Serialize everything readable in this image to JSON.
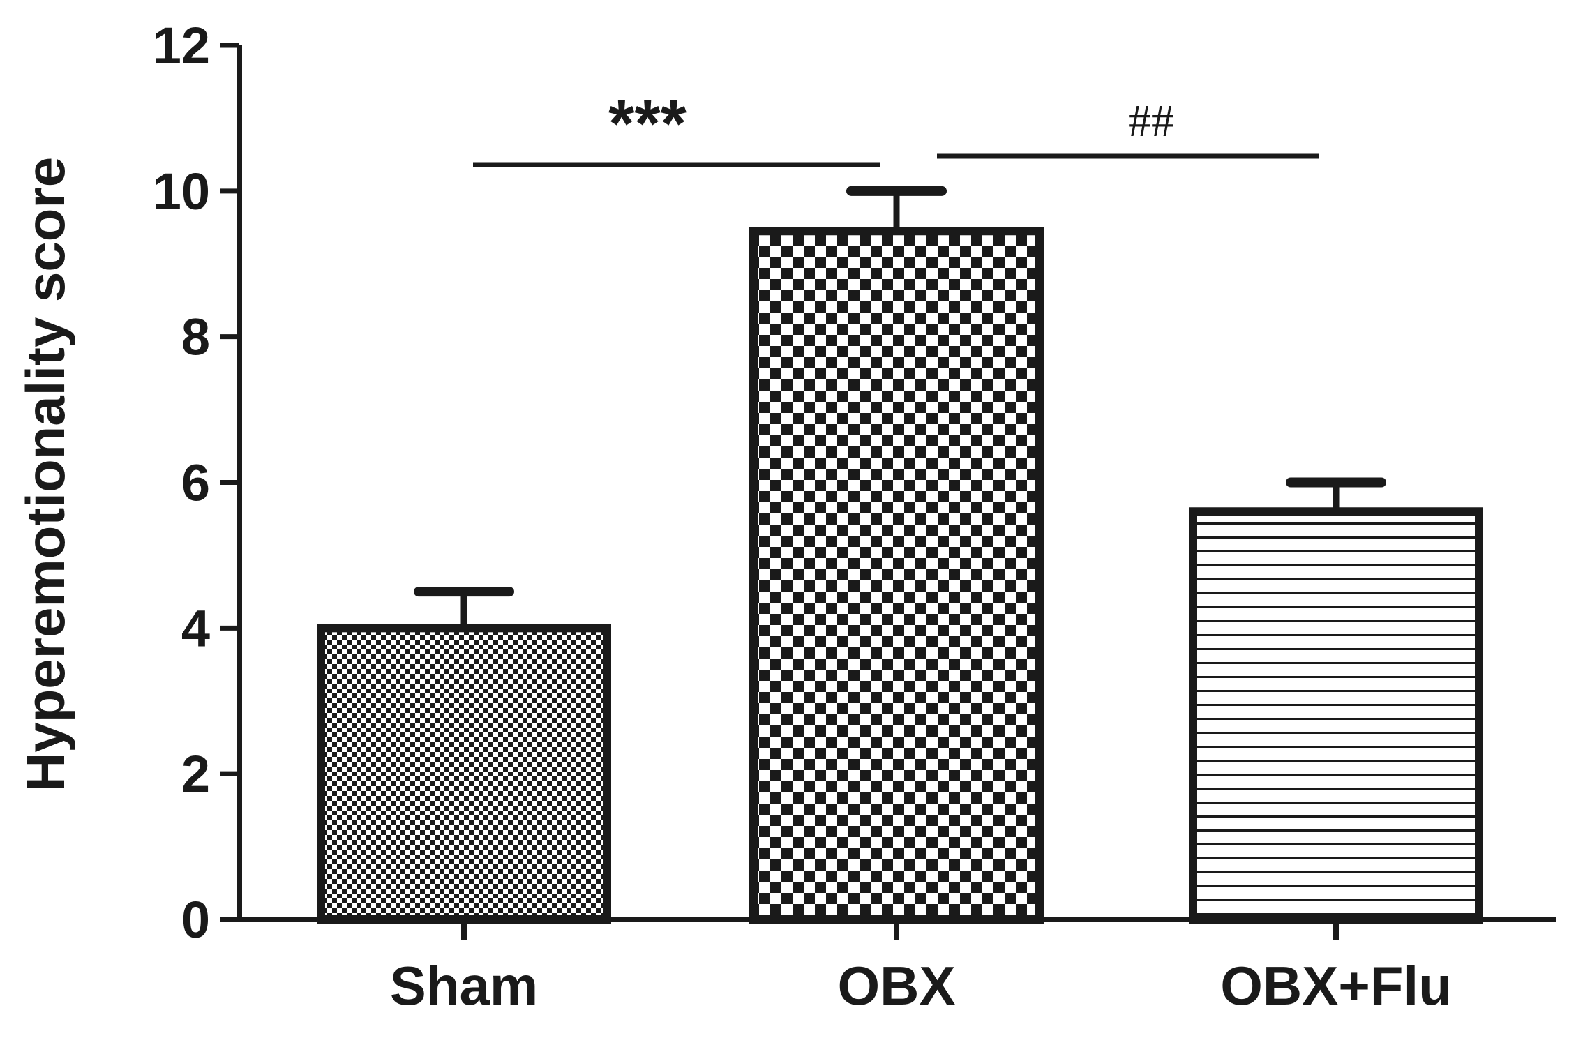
{
  "chart_data": {
    "type": "bar",
    "title": "",
    "xlabel": "",
    "ylabel": "Hyperemotionality score",
    "ylim": [
      0,
      12
    ],
    "yticks": [
      0,
      2,
      4,
      6,
      8,
      10,
      12
    ],
    "grid": false,
    "categories": [
      "Sham",
      "OBX",
      "OBX+Flu"
    ],
    "values": [
      4.0,
      9.45,
      5.6
    ],
    "errors": [
      0.5,
      0.55,
      0.4
    ],
    "bar_patterns": [
      "fine-checker",
      "coarse-checker",
      "horizontal-lines"
    ],
    "significance": [
      {
        "from": "Sham",
        "to": "OBX",
        "label": "***"
      },
      {
        "from": "OBX",
        "to": "OBX+Flu",
        "label": "##"
      }
    ],
    "colors": {
      "ink": "#1a1a1a",
      "background": "#ffffff"
    }
  }
}
